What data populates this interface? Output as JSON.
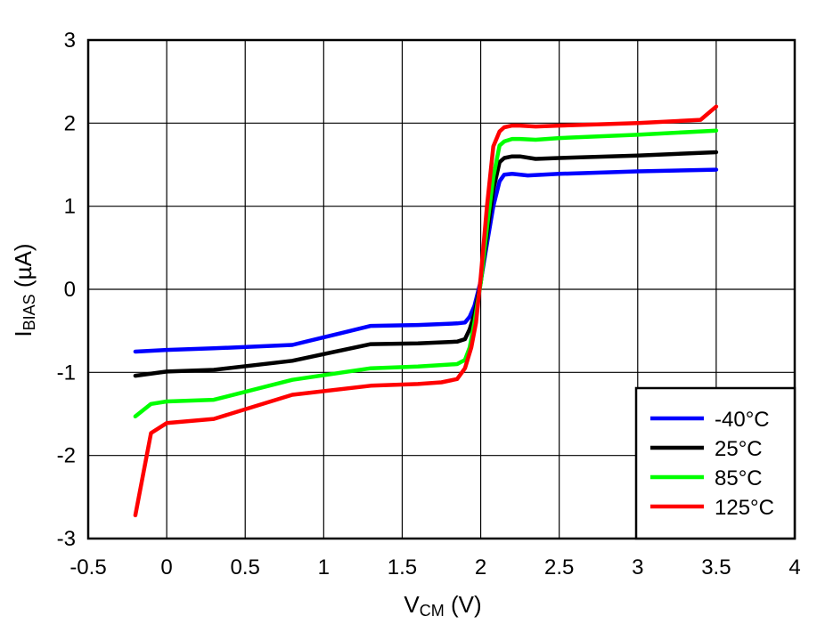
{
  "chart_data": {
    "type": "line",
    "xlabel": {
      "main": "V",
      "sub": "CM",
      "unit": " (V)"
    },
    "ylabel": {
      "main": "I",
      "sub": "BIAS",
      "unit": " (µA)"
    },
    "xlim": [
      -0.5,
      4
    ],
    "ylim": [
      -3,
      3
    ],
    "xticks": [
      -0.5,
      0,
      0.5,
      1,
      1.5,
      2,
      2.5,
      3,
      3.5,
      4
    ],
    "xtick_labels": [
      "-0.5",
      "0",
      "0.5",
      "1",
      "1.5",
      "2",
      "2.5",
      "3",
      "3.5",
      "4"
    ],
    "yticks": [
      -3,
      -2,
      -1,
      0,
      1,
      2,
      3
    ],
    "ytick_labels": [
      "-3",
      "-2",
      "-1",
      "0",
      "1",
      "2",
      "3"
    ],
    "grid": true,
    "legend_position": "bottom-right",
    "series": [
      {
        "name": "-40°C",
        "color": "#0000ff",
        "x": [
          -0.2,
          0,
          0.3,
          0.8,
          1.3,
          1.6,
          1.85,
          1.9,
          1.93,
          1.96,
          2.0,
          2.04,
          2.08,
          2.12,
          2.15,
          2.2,
          2.3,
          2.5,
          3.0,
          3.5
        ],
        "y": [
          -0.75,
          -0.73,
          -0.71,
          -0.67,
          -0.44,
          -0.43,
          -0.41,
          -0.4,
          -0.33,
          -0.2,
          0.1,
          0.55,
          1.0,
          1.3,
          1.38,
          1.39,
          1.37,
          1.39,
          1.42,
          1.44
        ]
      },
      {
        "name": "25°C",
        "color": "#000000",
        "x": [
          -0.2,
          0,
          0.3,
          0.8,
          1.3,
          1.6,
          1.85,
          1.9,
          1.93,
          1.96,
          2.0,
          2.04,
          2.08,
          2.12,
          2.15,
          2.2,
          2.25,
          2.35,
          2.5,
          3.0,
          3.5
        ],
        "y": [
          -1.04,
          -0.99,
          -0.97,
          -0.86,
          -0.66,
          -0.65,
          -0.63,
          -0.6,
          -0.48,
          -0.3,
          0.08,
          0.65,
          1.2,
          1.53,
          1.58,
          1.6,
          1.6,
          1.57,
          1.58,
          1.61,
          1.65
        ]
      },
      {
        "name": "85°C",
        "color": "#00ff00",
        "x": [
          -0.2,
          -0.1,
          0,
          0.3,
          0.8,
          1.3,
          1.6,
          1.85,
          1.9,
          1.93,
          1.96,
          2.0,
          2.04,
          2.08,
          2.12,
          2.15,
          2.2,
          2.25,
          2.35,
          2.5,
          3.0,
          3.5
        ],
        "y": [
          -1.53,
          -1.38,
          -1.35,
          -1.33,
          -1.09,
          -0.95,
          -0.93,
          -0.9,
          -0.85,
          -0.7,
          -0.4,
          0.08,
          0.75,
          1.35,
          1.73,
          1.78,
          1.81,
          1.81,
          1.8,
          1.82,
          1.86,
          1.91
        ]
      },
      {
        "name": "125°C",
        "color": "#ff0000",
        "x": [
          -0.2,
          -0.1,
          0,
          0.3,
          0.8,
          1.3,
          1.6,
          1.75,
          1.85,
          1.9,
          1.94,
          1.97,
          2.0,
          2.04,
          2.08,
          2.12,
          2.15,
          2.2,
          2.25,
          2.35,
          2.5,
          3.0,
          3.4,
          3.5
        ],
        "y": [
          -2.72,
          -1.73,
          -1.61,
          -1.56,
          -1.27,
          -1.16,
          -1.14,
          -1.12,
          -1.08,
          -0.95,
          -0.7,
          -0.4,
          0.15,
          1.0,
          1.72,
          1.9,
          1.95,
          1.97,
          1.97,
          1.96,
          1.97,
          2.0,
          2.04,
          2.2
        ]
      }
    ]
  }
}
